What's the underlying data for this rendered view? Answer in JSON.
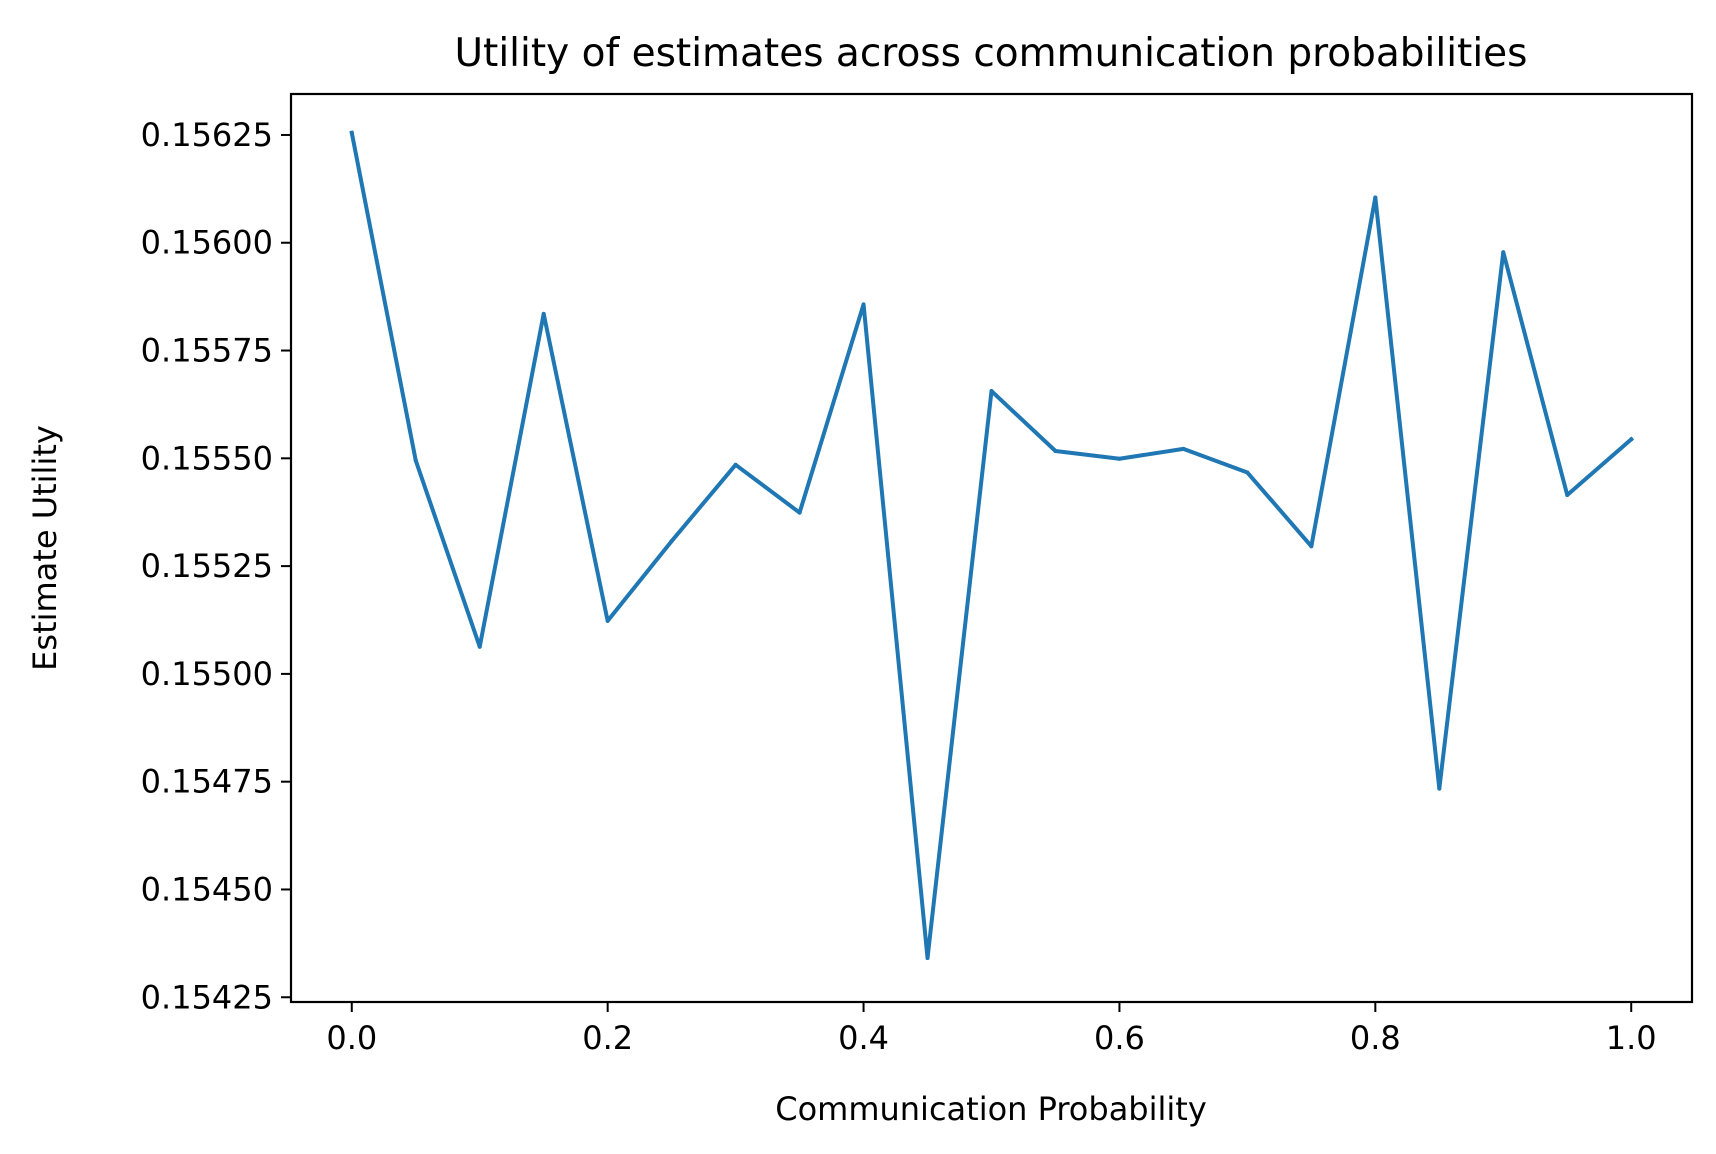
{
  "chart_data": {
    "type": "line",
    "title": "Utility of estimates across communication probabilities",
    "xlabel": "Communication Probability",
    "ylabel": "Estimate Utility",
    "xlim": [
      -0.0475,
      1.0475
    ],
    "ylim": [
      0.154239,
      0.156345
    ],
    "xticks": [
      0.0,
      0.2,
      0.4,
      0.6,
      0.8,
      1.0
    ],
    "xtick_labels": [
      "0.0",
      "0.2",
      "0.4",
      "0.6",
      "0.8",
      "1.0"
    ],
    "yticks": [
      0.15425,
      0.1545,
      0.15475,
      0.155,
      0.15525,
      0.1555,
      0.15575,
      0.156,
      0.15625
    ],
    "ytick_labels": [
      "0.15425",
      "0.15450",
      "0.15475",
      "0.15500",
      "0.15525",
      "0.15550",
      "0.15575",
      "0.15600",
      "0.15625"
    ],
    "grid": false,
    "legend": "none",
    "series": [
      {
        "color": "#1f77b4",
        "x": [
          0.0,
          0.05,
          0.1,
          0.15,
          0.2,
          0.25,
          0.3,
          0.35,
          0.4,
          0.45,
          0.5,
          0.55,
          0.6,
          0.65,
          0.7,
          0.75,
          0.8,
          0.85,
          0.9,
          0.95,
          1.0
        ],
        "y": [
          0.156255,
          0.155495,
          0.155063,
          0.155835,
          0.155123,
          0.155308,
          0.155485,
          0.155374,
          0.155857,
          0.154341,
          0.155656,
          0.155517,
          0.155499,
          0.155522,
          0.155467,
          0.155296,
          0.156105,
          0.154734,
          0.155978,
          0.155415,
          0.155544
        ]
      }
    ]
  }
}
